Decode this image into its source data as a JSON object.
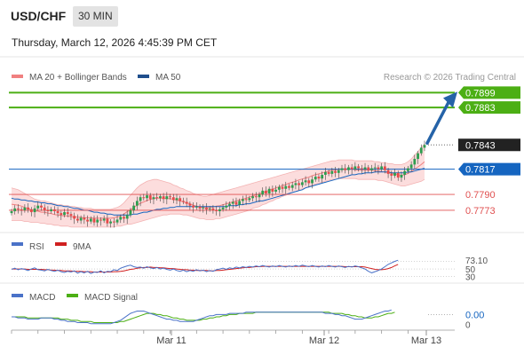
{
  "header": {
    "symbol": "USD/CHF",
    "timeframe": "30 MIN",
    "datetime": "Thursday, March 12, 2026 4:45:39 PM CET"
  },
  "legend": {
    "items": [
      {
        "label": "MA 20 + Bollinger Bands",
        "color": "#f08080"
      },
      {
        "label": "MA 50",
        "color": "#1f4e8c"
      }
    ],
    "copyright": "Research © 2026 Trading Central"
  },
  "colors": {
    "target_green": "#4caf14",
    "pivot_blue": "#1565c0",
    "support_red": "#e05050",
    "bollinger_fill": "#fbd4d4",
    "candle_up": "#2e9e4f",
    "candle_down": "#e84a4a",
    "arrow": "#2563a8",
    "current_price_bg": "#222222",
    "rsi_line": "#4a72c8",
    "rsi_ma": "#d02020",
    "macd_line": "#4a72c8",
    "macd_signal": "#4caf14"
  },
  "chart_data": [
    {
      "type": "candlestick",
      "title": "",
      "y_range": [
        0.7753,
        0.7905
      ],
      "x_ticks": [
        "Mar 11",
        "Mar 12",
        "Mar 13"
      ],
      "levels": [
        {
          "value": 0.7899,
          "label": "0.7899",
          "kind": "target"
        },
        {
          "value": 0.7883,
          "label": "0.7883",
          "kind": "target"
        },
        {
          "value": 0.7843,
          "label": "0.7843",
          "kind": "current"
        },
        {
          "value": 0.7817,
          "label": "0.7817",
          "kind": "pivot"
        },
        {
          "value": 0.779,
          "label": "0.7790",
          "kind": "support"
        },
        {
          "value": 0.7773,
          "label": "0.7773",
          "kind": "support"
        }
      ],
      "close": [
        0.7772,
        0.7775,
        0.7774,
        0.7773,
        0.7776,
        0.7774,
        0.7771,
        0.7775,
        0.7778,
        0.7776,
        0.7773,
        0.7772,
        0.7774,
        0.7772,
        0.777,
        0.7768,
        0.7771,
        0.7769,
        0.7767,
        0.7764,
        0.7762,
        0.7765,
        0.7763,
        0.7761,
        0.7764,
        0.776,
        0.7763,
        0.7762,
        0.7764,
        0.7759,
        0.7761,
        0.776,
        0.7763,
        0.7766,
        0.7764,
        0.7768,
        0.7773,
        0.7778,
        0.7783,
        0.7787,
        0.7786,
        0.7789,
        0.7785,
        0.7787,
        0.7786,
        0.7788,
        0.7785,
        0.7788,
        0.7787,
        0.7784,
        0.7786,
        0.7783,
        0.7782,
        0.778,
        0.7778,
        0.7776,
        0.7777,
        0.7775,
        0.7776,
        0.7774,
        0.7775,
        0.7773,
        0.7772,
        0.7774,
        0.7776,
        0.7778,
        0.778,
        0.7782,
        0.7779,
        0.7783,
        0.7785,
        0.7784,
        0.7786,
        0.7788,
        0.7787,
        0.779,
        0.7794,
        0.7791,
        0.7796,
        0.7793,
        0.7795,
        0.7798,
        0.7796,
        0.7799,
        0.7797,
        0.78,
        0.7802,
        0.78,
        0.7803,
        0.7805,
        0.7802,
        0.7806,
        0.7809,
        0.7807,
        0.7811,
        0.7814,
        0.7812,
        0.7815,
        0.7813,
        0.7816,
        0.7818,
        0.7816,
        0.7819,
        0.7817,
        0.782,
        0.7818,
        0.7817,
        0.7819,
        0.7816,
        0.7818,
        0.7819,
        0.7817,
        0.782,
        0.7816,
        0.7812,
        0.781,
        0.7813,
        0.7808,
        0.7811,
        0.7815,
        0.7818,
        0.7822,
        0.7828,
        0.7834,
        0.784,
        0.7843
      ],
      "ma20_upper": [
        0.7797,
        0.7796,
        0.7795,
        0.7793,
        0.7791,
        0.7789,
        0.7787,
        0.7785,
        0.7784,
        0.7783,
        0.7783,
        0.7782,
        0.7781,
        0.778,
        0.7779,
        0.7779,
        0.7778,
        0.7778,
        0.7777,
        0.7777,
        0.7776,
        0.7776,
        0.7775,
        0.7775,
        0.7775,
        0.7774,
        0.7774,
        0.7774,
        0.7774,
        0.7774,
        0.7774,
        0.7775,
        0.7776,
        0.7778,
        0.7781,
        0.7785,
        0.7789,
        0.7793,
        0.7797,
        0.78,
        0.7802,
        0.7804,
        0.7805,
        0.7806,
        0.7806,
        0.7805,
        0.7804,
        0.7803,
        0.7802,
        0.78,
        0.7799,
        0.7797,
        0.7796,
        0.7794,
        0.7793,
        0.7791,
        0.779,
        0.7789,
        0.7788,
        0.7788,
        0.7789,
        0.779,
        0.7791,
        0.7792,
        0.7793,
        0.7794,
        0.7795,
        0.7796,
        0.7797,
        0.7798,
        0.7799,
        0.78,
        0.7801,
        0.7802,
        0.7803,
        0.7804,
        0.7805,
        0.7806,
        0.7807,
        0.7808,
        0.7809,
        0.781,
        0.7811,
        0.7812,
        0.7813,
        0.7814,
        0.7815,
        0.7816,
        0.7817,
        0.7818,
        0.7819,
        0.782,
        0.7821,
        0.7822,
        0.7823,
        0.7824,
        0.7825,
        0.7826,
        0.7826,
        0.7827,
        0.7827,
        0.7827,
        0.7827,
        0.7827,
        0.7826,
        0.7826,
        0.7826,
        0.7826,
        0.7826,
        0.7826,
        0.7825,
        0.7825,
        0.7824,
        0.7824,
        0.7823,
        0.7823,
        0.7822,
        0.7822,
        0.7822,
        0.7823,
        0.7825,
        0.7828,
        0.7832,
        0.7836,
        0.784,
        0.7844
      ],
      "ma20_lower": [
        0.7762,
        0.7762,
        0.7762,
        0.7762,
        0.7761,
        0.7761,
        0.776,
        0.776,
        0.776,
        0.7759,
        0.7759,
        0.7758,
        0.7758,
        0.7757,
        0.7757,
        0.7756,
        0.7756,
        0.7756,
        0.7755,
        0.7755,
        0.7755,
        0.7755,
        0.7755,
        0.7755,
        0.7755,
        0.7755,
        0.7755,
        0.7755,
        0.7755,
        0.7755,
        0.7755,
        0.7755,
        0.7756,
        0.7756,
        0.7757,
        0.7758,
        0.7758,
        0.7759,
        0.776,
        0.7761,
        0.7762,
        0.7763,
        0.7764,
        0.7765,
        0.7766,
        0.7767,
        0.7768,
        0.7768,
        0.7769,
        0.7769,
        0.7769,
        0.7769,
        0.7768,
        0.7768,
        0.7767,
        0.7766,
        0.7765,
        0.7764,
        0.7764,
        0.7763,
        0.7763,
        0.7763,
        0.7764,
        0.7764,
        0.7765,
        0.7766,
        0.7767,
        0.7768,
        0.7769,
        0.777,
        0.7771,
        0.7772,
        0.7773,
        0.7775,
        0.7776,
        0.7777,
        0.7779,
        0.778,
        0.7782,
        0.7783,
        0.7785,
        0.7786,
        0.7788,
        0.7789,
        0.7791,
        0.7792,
        0.7793,
        0.7795,
        0.7796,
        0.7797,
        0.7798,
        0.78,
        0.7801,
        0.7802,
        0.7803,
        0.7804,
        0.7805,
        0.7806,
        0.7806,
        0.7807,
        0.7807,
        0.7807,
        0.7807,
        0.7807,
        0.7807,
        0.7806,
        0.7806,
        0.7806,
        0.7806,
        0.7806,
        0.7806,
        0.7805,
        0.7805,
        0.7804,
        0.7803,
        0.7802,
        0.7801,
        0.78,
        0.7799,
        0.7799,
        0.78,
        0.7801,
        0.7802,
        0.7803,
        0.7804,
        0.7806
      ],
      "ma50": [
        0.7786,
        0.7785,
        0.7785,
        0.7784,
        0.7784,
        0.7783,
        0.7783,
        0.7782,
        0.7782,
        0.7781,
        0.7781,
        0.778,
        0.778,
        0.7779,
        0.7778,
        0.7778,
        0.7777,
        0.7777,
        0.7776,
        0.7775,
        0.7775,
        0.7774,
        0.7773,
        0.7773,
        0.7772,
        0.7771,
        0.7771,
        0.777,
        0.777,
        0.7769,
        0.7769,
        0.7768,
        0.7768,
        0.7768,
        0.7768,
        0.7768,
        0.7768,
        0.7769,
        0.7769,
        0.777,
        0.7771,
        0.7771,
        0.7772,
        0.7773,
        0.7774,
        0.7774,
        0.7775,
        0.7775,
        0.7776,
        0.7776,
        0.7777,
        0.7777,
        0.7777,
        0.7777,
        0.7777,
        0.7777,
        0.7777,
        0.7777,
        0.7777,
        0.7777,
        0.7777,
        0.7777,
        0.7777,
        0.7777,
        0.7777,
        0.7777,
        0.7778,
        0.7778,
        0.7778,
        0.7779,
        0.7779,
        0.778,
        0.778,
        0.7781,
        0.7782,
        0.7783,
        0.7783,
        0.7784,
        0.7785,
        0.7786,
        0.7787,
        0.7788,
        0.7789,
        0.779,
        0.7791,
        0.7792,
        0.7793,
        0.7794,
        0.7795,
        0.7797,
        0.7798,
        0.7799,
        0.78,
        0.7801,
        0.7802,
        0.7803,
        0.7804,
        0.7805,
        0.7806,
        0.7807,
        0.7808,
        0.7809,
        0.781,
        0.7811,
        0.7811,
        0.7812,
        0.7812,
        0.7813,
        0.7813,
        0.7813,
        0.7814,
        0.7814,
        0.7814,
        0.7814,
        0.7814,
        0.7813,
        0.7813,
        0.7813,
        0.7813,
        0.7813,
        0.7814,
        0.7814,
        0.7815,
        0.7816,
        0.7817,
        0.7818
      ]
    },
    {
      "type": "line",
      "name": "RSI",
      "y_range": [
        20,
        85
      ],
      "levels": [
        {
          "value": 73.1,
          "label": "73.10"
        },
        {
          "value": 50,
          "label": "50"
        },
        {
          "value": 30,
          "label": "30"
        }
      ],
      "series": [
        {
          "name": "RSI",
          "values": [
            49,
            52,
            48,
            51,
            49,
            46,
            50,
            53,
            48,
            47,
            45,
            49,
            46,
            44,
            47,
            43,
            41,
            44,
            42,
            45,
            39,
            43,
            40,
            44,
            38,
            42,
            41,
            45,
            40,
            44,
            43,
            48,
            46,
            52,
            55,
            58,
            60,
            56,
            54,
            55,
            52,
            56,
            53,
            51,
            54,
            50,
            52,
            49,
            47,
            50,
            46,
            44,
            47,
            43,
            46,
            44,
            48,
            45,
            47,
            43,
            46,
            44,
            48,
            50,
            52,
            49,
            53,
            51,
            55,
            53,
            56,
            54,
            57,
            55,
            58,
            56,
            59,
            57,
            55,
            58,
            56,
            59,
            57,
            55,
            58,
            56,
            59,
            57,
            60,
            58,
            56,
            59,
            57,
            55,
            58,
            56,
            59,
            57,
            55,
            58,
            56,
            54,
            57,
            55,
            58,
            56,
            53,
            50,
            44,
            40,
            43,
            46,
            50,
            56,
            62,
            66,
            70,
            73
          ]
        },
        {
          "name": "9MA",
          "values": [
            50,
            50,
            50,
            50,
            50,
            49,
            49,
            49,
            49,
            49,
            48,
            48,
            47,
            47,
            46,
            46,
            45,
            45,
            45,
            44,
            44,
            44,
            43,
            43,
            43,
            42,
            42,
            42,
            42,
            42,
            42,
            43,
            43,
            44,
            45,
            47,
            49,
            50,
            52,
            53,
            54,
            54,
            55,
            54,
            54,
            53,
            53,
            52,
            51,
            51,
            50,
            49,
            48,
            48,
            47,
            47,
            46,
            46,
            46,
            46,
            45,
            45,
            46,
            46,
            47,
            48,
            49,
            50,
            51,
            52,
            53,
            54,
            54,
            55,
            56,
            56,
            57,
            57,
            57,
            57,
            57,
            57,
            57,
            57,
            57,
            57,
            57,
            57,
            57,
            57,
            57,
            57,
            57,
            57,
            57,
            57,
            57,
            57,
            57,
            57,
            57,
            56,
            56,
            56,
            56,
            56,
            56,
            55,
            53,
            51,
            49,
            48,
            48,
            49,
            51,
            54,
            58,
            62
          ]
        }
      ]
    },
    {
      "type": "line",
      "name": "MACD",
      "y_range": [
        -0.0012,
        0.0008
      ],
      "levels": [
        {
          "value": 0.0,
          "label": "0.00"
        },
        {
          "value": -0.00035,
          "label": "0"
        }
      ],
      "series": [
        {
          "name": "MACD",
          "values": [
            -0.0002,
            -0.0002,
            -0.0003,
            -0.0003,
            -0.0003,
            -0.0004,
            -0.0004,
            -0.0004,
            -0.0004,
            -0.0003,
            -0.0003,
            -0.0003,
            -0.0003,
            -0.0004,
            -0.0004,
            -0.0005,
            -0.0005,
            -0.0006,
            -0.0006,
            -0.0006,
            -0.0007,
            -0.0007,
            -0.0007,
            -0.0007,
            -0.0008,
            -0.0008,
            -0.0008,
            -0.0008,
            -0.0008,
            -0.0008,
            -0.0008,
            -0.0007,
            -0.0006,
            -0.0005,
            -0.0003,
            -0.0001,
            0.0001,
            0.0002,
            0.0003,
            0.0003,
            0.0003,
            0.0002,
            0.0001,
            0.0,
            -0.0001,
            -0.0002,
            -0.0003,
            -0.0004,
            -0.0004,
            -0.0005,
            -0.0005,
            -0.0006,
            -0.0006,
            -0.0006,
            -0.0006,
            -0.0006,
            -0.0005,
            -0.0004,
            -0.0003,
            -0.0002,
            -0.0001,
            -0.0001,
            0.0,
            0.0,
            0.0,
            0.0,
            0.0001,
            0.0001,
            0.0001,
            0.0001,
            0.0001,
            0.0002,
            0.0002,
            0.0002,
            0.0002,
            0.0002,
            0.0002,
            0.0002,
            0.0002,
            0.0002,
            0.0002,
            0.0002,
            0.0002,
            0.0002,
            0.0002,
            0.0002,
            0.0002,
            0.0002,
            0.0002,
            0.0002,
            0.0002,
            0.0002,
            0.0002,
            0.0002,
            0.0002,
            0.0001,
            0.0001,
            0.0001,
            0.0,
            0.0,
            -0.0001,
            -0.0001,
            -0.0002,
            -0.0003,
            -0.0004,
            -0.0004,
            -0.0004,
            -0.0003,
            -0.0002,
            -0.0001,
            0.0,
            0.0001,
            0.0002,
            0.0003,
            0.0003,
            0.0004
          ]
        },
        {
          "name": "MACD Signal",
          "values": [
            -0.0002,
            -0.0002,
            -0.0002,
            -0.0002,
            -0.0002,
            -0.0003,
            -0.0003,
            -0.0003,
            -0.0003,
            -0.0003,
            -0.0003,
            -0.0003,
            -0.0003,
            -0.0003,
            -0.0003,
            -0.0004,
            -0.0004,
            -0.0004,
            -0.0005,
            -0.0005,
            -0.0005,
            -0.0006,
            -0.0006,
            -0.0006,
            -0.0006,
            -0.0007,
            -0.0007,
            -0.0007,
            -0.0007,
            -0.0007,
            -0.0007,
            -0.0007,
            -0.0007,
            -0.0006,
            -0.0006,
            -0.0005,
            -0.0004,
            -0.0003,
            -0.0002,
            -0.0001,
            0.0,
            0.0001,
            0.0001,
            0.0001,
            0.0,
            0.0,
            -0.0001,
            -0.0001,
            -0.0002,
            -0.0003,
            -0.0003,
            -0.0004,
            -0.0004,
            -0.0005,
            -0.0005,
            -0.0005,
            -0.0005,
            -0.0005,
            -0.0004,
            -0.0004,
            -0.0003,
            -0.0003,
            -0.0002,
            -0.0002,
            -0.0001,
            -0.0001,
            0.0,
            0.0,
            0.0,
            0.0001,
            0.0001,
            0.0001,
            0.0001,
            0.0001,
            0.0002,
            0.0002,
            0.0002,
            0.0002,
            0.0002,
            0.0002,
            0.0002,
            0.0002,
            0.0002,
            0.0002,
            0.0002,
            0.0002,
            0.0002,
            0.0002,
            0.0002,
            0.0002,
            0.0002,
            0.0002,
            0.0002,
            0.0002,
            0.0002,
            0.0002,
            0.0002,
            0.0001,
            0.0001,
            0.0001,
            0.0001,
            0.0,
            0.0,
            -0.0001,
            -0.0001,
            -0.0002,
            -0.0002,
            -0.0003,
            -0.0003,
            -0.0003,
            -0.0002,
            -0.0002,
            -0.0001,
            0.0,
            0.0001,
            0.0001,
            0.0002
          ]
        }
      ],
      "legend": [
        {
          "label": "MACD"
        },
        {
          "label": "MACD Signal"
        }
      ]
    }
  ]
}
